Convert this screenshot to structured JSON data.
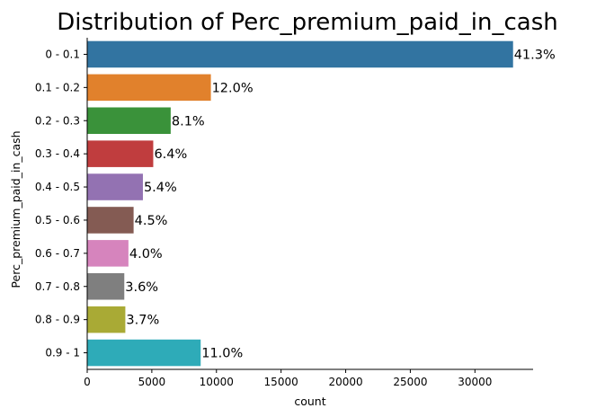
{
  "chart_data": {
    "type": "bar",
    "orientation": "horizontal",
    "title": "Distribution of Perc_premium_paid_in_cash",
    "xlabel": "count",
    "ylabel": "Perc_premium_paid_in_cash",
    "xlim": [
      0,
      34500
    ],
    "x_ticks": [
      0,
      5000,
      10000,
      15000,
      20000,
      25000,
      30000
    ],
    "categories": [
      "0 - 0.1",
      "0.1 - 0.2",
      "0.2 - 0.3",
      "0.3 - 0.4",
      "0.4 - 0.5",
      "0.5 - 0.6",
      "0.6 - 0.7",
      "0.7 - 0.8",
      "0.8 - 0.9",
      "0.9 - 1"
    ],
    "values": [
      32950,
      9570,
      6460,
      5110,
      4310,
      3590,
      3190,
      2870,
      2950,
      8780
    ],
    "labels": [
      "41.3%",
      "12.0%",
      "8.1%",
      "6.4%",
      "5.4%",
      "4.5%",
      "4.0%",
      "3.6%",
      "3.7%",
      "11.0%"
    ],
    "colors": [
      "#3274a1",
      "#e1812c",
      "#3a923a",
      "#c03d3e",
      "#9372b2",
      "#845b53",
      "#d684bd",
      "#7f7f7f",
      "#a9aa35",
      "#2eabb8"
    ],
    "grid": false,
    "legend": "none"
  }
}
